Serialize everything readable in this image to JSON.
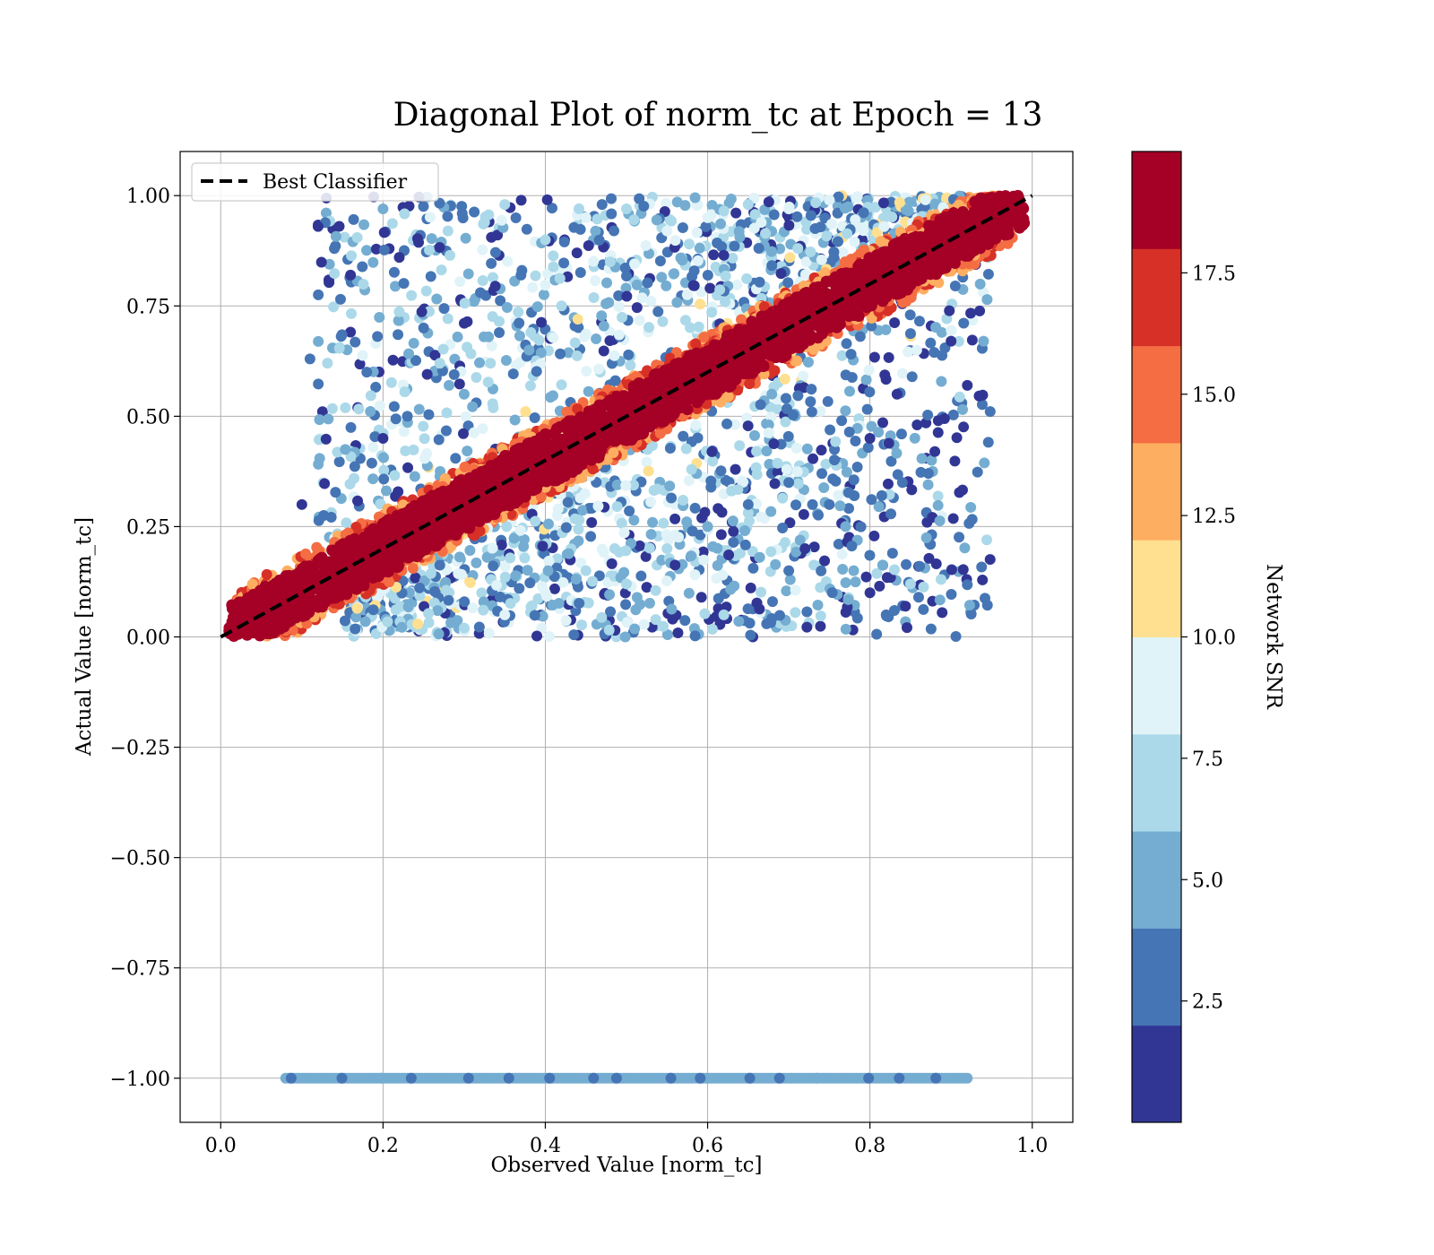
{
  "chart_data": {
    "type": "scatter",
    "title": "Diagonal Plot of norm_tc at Epoch = 13",
    "xlabel": "Observed Value [norm_tc]",
    "ylabel": "Actual Value [norm_tc]",
    "xlim": [
      -0.05,
      1.05
    ],
    "ylim": [
      -1.1,
      1.1
    ],
    "x_ticks": [
      0.0,
      0.2,
      0.4,
      0.6,
      0.8,
      1.0
    ],
    "x_tick_labels": [
      "0.0",
      "0.2",
      "0.4",
      "0.6",
      "0.8",
      "1.0"
    ],
    "y_ticks": [
      1.0,
      0.75,
      0.5,
      0.25,
      0.0,
      -0.25,
      -0.5,
      -0.75,
      -1.0
    ],
    "y_tick_labels": [
      "1.00",
      "0.75",
      "0.50",
      "0.25",
      "0.00",
      "−0.25",
      "−0.50",
      "−0.75",
      "−1.00"
    ],
    "grid": true,
    "legend": {
      "position": "top-left",
      "entries": [
        {
          "label": "Best Classifier",
          "style": "dashed",
          "color": "#000000"
        }
      ]
    },
    "reference_line": {
      "label": "Best Classifier",
      "x": [
        0.0,
        1.0
      ],
      "y": [
        0.0,
        1.0
      ],
      "color": "#000000",
      "style": "dashed"
    },
    "colorbar": {
      "label": "Network SNR",
      "range": [
        0,
        20
      ],
      "ticks": [
        2.5,
        5.0,
        7.5,
        10.0,
        12.5,
        15.0,
        17.5
      ],
      "tick_labels": [
        "2.5",
        "5.0",
        "7.5",
        "10.0",
        "12.5",
        "15.0",
        "17.5"
      ],
      "bands": [
        "#313695",
        "#4575b4",
        "#74add1",
        "#abd9e9",
        "#e0f3f8",
        "#fee090",
        "#fdae61",
        "#f46d43",
        "#d73027",
        "#a50026"
      ]
    },
    "series": [
      {
        "kind": "band",
        "description_color_by": "snr",
        "points": [
          [
            0.05,
            0.04,
            19
          ],
          [
            0.1,
            0.09,
            19
          ],
          [
            0.15,
            0.16,
            19
          ],
          [
            0.2,
            0.2,
            19
          ],
          [
            0.25,
            0.24,
            19
          ],
          [
            0.3,
            0.31,
            19
          ],
          [
            0.35,
            0.36,
            19
          ],
          [
            0.4,
            0.39,
            19
          ],
          [
            0.45,
            0.45,
            19
          ],
          [
            0.5,
            0.51,
            19
          ],
          [
            0.55,
            0.55,
            19
          ],
          [
            0.6,
            0.6,
            19
          ],
          [
            0.65,
            0.66,
            19
          ],
          [
            0.7,
            0.69,
            19
          ],
          [
            0.75,
            0.75,
            19
          ],
          [
            0.8,
            0.81,
            19
          ],
          [
            0.85,
            0.85,
            19
          ],
          [
            0.9,
            0.9,
            19
          ],
          [
            0.95,
            0.96,
            19
          ],
          [
            0.98,
            0.99,
            19
          ]
        ]
      },
      {
        "kind": "scatter_upper",
        "points": [
          [
            0.1,
            0.3,
            1.5
          ],
          [
            0.12,
            0.93,
            1.5
          ],
          [
            0.14,
            0.88,
            3
          ],
          [
            0.16,
            0.82,
            1.5
          ],
          [
            0.18,
            0.6,
            3
          ],
          [
            0.2,
            0.97,
            5
          ],
          [
            0.22,
            0.86,
            1.5
          ],
          [
            0.25,
            0.7,
            3
          ],
          [
            0.28,
            0.92,
            6
          ],
          [
            0.3,
            0.55,
            5
          ],
          [
            0.32,
            0.78,
            3
          ],
          [
            0.35,
            0.98,
            7
          ],
          [
            0.38,
            0.65,
            5
          ],
          [
            0.4,
            0.9,
            6
          ],
          [
            0.42,
            0.75,
            7
          ],
          [
            0.45,
            0.95,
            8
          ],
          [
            0.48,
            0.85,
            6
          ],
          [
            0.5,
            0.97,
            7
          ],
          [
            0.55,
            0.92,
            8
          ],
          [
            0.6,
            0.95,
            9
          ],
          [
            0.65,
            0.98,
            7
          ],
          [
            0.7,
            0.97,
            8
          ],
          [
            0.75,
            0.99,
            9
          ],
          [
            0.11,
            0.63,
            3
          ],
          [
            0.2,
            0.45,
            1.5
          ],
          [
            0.23,
            0.5,
            3
          ],
          [
            0.27,
            0.62,
            6
          ],
          [
            0.33,
            0.68,
            5
          ],
          [
            0.37,
            0.82,
            3
          ],
          [
            0.44,
            0.72,
            11
          ]
        ]
      },
      {
        "kind": "scatter_lower",
        "points": [
          [
            0.3,
            0.02,
            7
          ],
          [
            0.35,
            0.05,
            8
          ],
          [
            0.4,
            0.1,
            9
          ],
          [
            0.45,
            0.15,
            6
          ],
          [
            0.5,
            0.12,
            7
          ],
          [
            0.55,
            0.2,
            6
          ],
          [
            0.6,
            0.25,
            5
          ],
          [
            0.65,
            0.3,
            3
          ],
          [
            0.7,
            0.35,
            3
          ],
          [
            0.72,
            0.2,
            1.5
          ],
          [
            0.75,
            0.3,
            3
          ],
          [
            0.78,
            0.15,
            5
          ],
          [
            0.8,
            0.45,
            1.5
          ],
          [
            0.82,
            0.05,
            3
          ],
          [
            0.85,
            0.12,
            6
          ],
          [
            0.88,
            0.42,
            1.5
          ],
          [
            0.9,
            0.67,
            1.5
          ],
          [
            0.92,
            0.57,
            1.5
          ],
          [
            0.94,
            0.67,
            5
          ],
          [
            0.8,
            0.1,
            1.5
          ],
          [
            0.68,
            0.08,
            3
          ],
          [
            0.62,
            0.05,
            6
          ],
          [
            0.7,
            0.15,
            3
          ],
          [
            0.77,
            0.25,
            5
          ],
          [
            0.84,
            0.35,
            3
          ],
          [
            0.86,
            0.09,
            3
          ]
        ]
      },
      {
        "kind": "strip",
        "y": -1.0,
        "x_range": [
          0.08,
          0.92
        ],
        "snr": 5.5
      }
    ]
  }
}
